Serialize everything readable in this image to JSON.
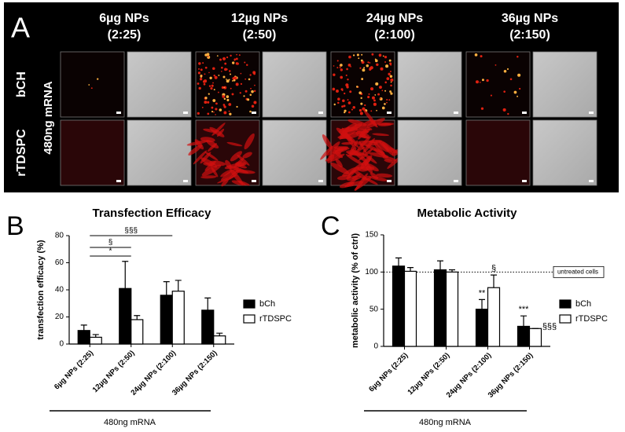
{
  "panel_a": {
    "label": "A",
    "columns": [
      {
        "dose": "6µg NPs",
        "ratio": "(2:25)"
      },
      {
        "dose": "12µg NPs",
        "ratio": "(2:50)"
      },
      {
        "dose": "24µg NPs",
        "ratio": "(2:100)"
      },
      {
        "dose": "36µg NPs",
        "ratio": "(2:150)"
      }
    ],
    "rows": [
      "bCH",
      "rTDSPC"
    ],
    "side_label": "480ng mRNA"
  },
  "chart_data": [
    {
      "type": "bar",
      "panel": "B",
      "title": "Transfection Efficacy",
      "y_label": "transfection efficacy (%)",
      "categories": [
        "6µg NPs (2:25)",
        "12µg NPs (2:50)",
        "24µg NPs (2:100)",
        "36µg NPs (2:150)"
      ],
      "series": [
        {
          "name": "bCh",
          "color": "#000000",
          "values": [
            10,
            41,
            36,
            25
          ],
          "errors": [
            4,
            20,
            10,
            9
          ]
        },
        {
          "name": "rTDSPC",
          "color": "#ffffff",
          "values": [
            5,
            18,
            39,
            6
          ],
          "errors": [
            2,
            3,
            8,
            2
          ]
        }
      ],
      "ylim": [
        0,
        80
      ],
      "yticks": [
        0,
        20,
        40,
        60,
        80
      ],
      "annotations": [
        "*",
        "§",
        "§§§"
      ],
      "x_group_label": "480ng mRNA",
      "legend": "right"
    },
    {
      "type": "bar",
      "panel": "C",
      "title": "Metabolic Activity",
      "y_label": "metabolic activity (% of ctrl)",
      "categories": [
        "6µg NPs (2:25)",
        "12µg NPs (2:50)",
        "24µg NPs (2:100)",
        "36µg NPs (2:150)"
      ],
      "series": [
        {
          "name": "bCh",
          "color": "#000000",
          "values": [
            108,
            103,
            50,
            27
          ],
          "errors": [
            11,
            12,
            13,
            14
          ]
        },
        {
          "name": "rTDSPC",
          "color": "#ffffff",
          "values": [
            101,
            100,
            79,
            24
          ],
          "errors": [
            5,
            3,
            17,
            0
          ]
        }
      ],
      "ylim": [
        0,
        150
      ],
      "yticks": [
        0,
        50,
        100,
        150
      ],
      "reference": {
        "value": 100,
        "label": "untreated cells"
      },
      "annotations": [
        "**",
        "§",
        "***",
        "§§§"
      ],
      "x_group_label": "480ng mRNA",
      "legend": "right"
    }
  ]
}
